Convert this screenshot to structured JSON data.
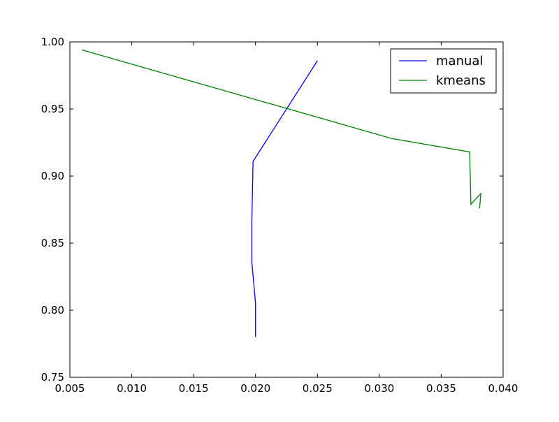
{
  "chart_data": {
    "type": "line",
    "title": "",
    "xlabel": "",
    "ylabel": "",
    "xlim": [
      0.005,
      0.04
    ],
    "ylim": [
      0.75,
      1.0
    ],
    "x_ticks": [
      0.005,
      0.01,
      0.015,
      0.02,
      0.025,
      0.03,
      0.035,
      0.04
    ],
    "x_tick_labels": [
      "0.005",
      "0.010",
      "0.015",
      "0.020",
      "0.025",
      "0.030",
      "0.035",
      "0.040"
    ],
    "y_ticks": [
      0.75,
      0.8,
      0.85,
      0.9,
      0.95,
      1.0
    ],
    "y_tick_labels": [
      "0.75",
      "0.80",
      "0.85",
      "0.90",
      "0.95",
      "1.00"
    ],
    "grid": false,
    "legend": {
      "placement": "top-right"
    },
    "series": [
      {
        "name": "manual",
        "color": "#0000ff",
        "points": [
          [
            0.02,
            0.78
          ],
          [
            0.02,
            0.805
          ],
          [
            0.0197,
            0.836
          ],
          [
            0.0197,
            0.866
          ],
          [
            0.0198,
            0.911
          ],
          [
            0.025,
            0.986
          ]
        ]
      },
      {
        "name": "kmeans",
        "color": "#008000",
        "points": [
          [
            0.006,
            0.994
          ],
          [
            0.031,
            0.928
          ],
          [
            0.0373,
            0.918
          ],
          [
            0.0374,
            0.879
          ],
          [
            0.0382,
            0.887
          ],
          [
            0.0381,
            0.876
          ]
        ]
      }
    ]
  }
}
